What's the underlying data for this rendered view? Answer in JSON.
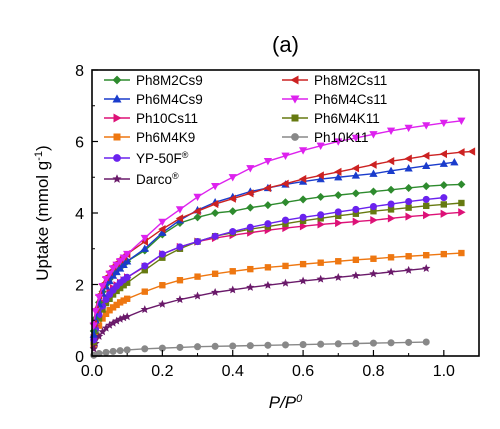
{
  "chart_data": {
    "type": "line",
    "title": "(a)",
    "xlabel": "P/P",
    "xlabel_sup": "0",
    "ylabel_main": "Uptake (mmol g",
    "ylabel_sup": "-1",
    "ylabel_end": ")",
    "xlim": [
      0,
      1.1
    ],
    "ylim": [
      0,
      8
    ],
    "xticks": [
      0.0,
      0.2,
      0.4,
      0.6,
      0.8,
      1.0
    ],
    "xtick_labels": [
      "0.0",
      "0.2",
      "0.4",
      "0.6",
      "0.8",
      "1.0"
    ],
    "yticks": [
      0,
      2,
      4,
      6,
      8
    ],
    "ytick_labels": [
      "0",
      "2",
      "4",
      "6",
      "8"
    ],
    "grid": false,
    "legend_position": "top-left",
    "series": [
      {
        "name": "Ph8M2Cs9",
        "color": "#2e8b2e",
        "marker": "diamond",
        "x": [
          0.005,
          0.01,
          0.02,
          0.03,
          0.04,
          0.05,
          0.06,
          0.07,
          0.08,
          0.09,
          0.1,
          0.15,
          0.2,
          0.25,
          0.3,
          0.35,
          0.4,
          0.45,
          0.5,
          0.55,
          0.6,
          0.65,
          0.7,
          0.75,
          0.8,
          0.85,
          0.9,
          0.95,
          1.0,
          1.05
        ],
        "y": [
          0.7,
          1.05,
          1.5,
          1.8,
          2.0,
          2.15,
          2.28,
          2.4,
          2.48,
          2.56,
          2.65,
          2.95,
          3.4,
          3.72,
          3.88,
          4.0,
          4.05,
          4.15,
          4.22,
          4.3,
          4.38,
          4.45,
          4.5,
          4.55,
          4.6,
          4.65,
          4.7,
          4.75,
          4.78,
          4.8
        ]
      },
      {
        "name": "Ph8M2Cs11",
        "color": "#cc2222",
        "marker": "triangle-left",
        "x": [
          0.005,
          0.01,
          0.02,
          0.03,
          0.04,
          0.05,
          0.06,
          0.07,
          0.08,
          0.09,
          0.1,
          0.15,
          0.2,
          0.25,
          0.3,
          0.35,
          0.4,
          0.45,
          0.5,
          0.55,
          0.6,
          0.65,
          0.7,
          0.75,
          0.8,
          0.85,
          0.9,
          0.95,
          1.0,
          1.05,
          1.08
        ],
        "y": [
          0.9,
          1.3,
          1.7,
          2.0,
          2.2,
          2.35,
          2.5,
          2.6,
          2.7,
          2.78,
          2.85,
          3.2,
          3.55,
          3.85,
          4.05,
          4.25,
          4.4,
          4.55,
          4.7,
          4.82,
          4.95,
          5.05,
          5.15,
          5.25,
          5.35,
          5.45,
          5.52,
          5.6,
          5.65,
          5.7,
          5.72
        ]
      },
      {
        "name": "Ph6M4Cs9",
        "color": "#1a3ccc",
        "marker": "triangle-up",
        "x": [
          0.005,
          0.01,
          0.02,
          0.03,
          0.04,
          0.05,
          0.06,
          0.07,
          0.08,
          0.09,
          0.1,
          0.15,
          0.2,
          0.25,
          0.3,
          0.35,
          0.4,
          0.45,
          0.5,
          0.55,
          0.6,
          0.65,
          0.7,
          0.75,
          0.8,
          0.85,
          0.9,
          0.95,
          1.0,
          1.03
        ],
        "y": [
          0.6,
          1.0,
          1.45,
          1.75,
          1.95,
          2.1,
          2.25,
          2.35,
          2.45,
          2.55,
          2.65,
          3.0,
          3.45,
          3.8,
          4.08,
          4.3,
          4.45,
          4.6,
          4.7,
          4.8,
          4.88,
          4.95,
          5.0,
          5.05,
          5.1,
          5.18,
          5.25,
          5.32,
          5.38,
          5.42
        ]
      },
      {
        "name": "Ph6M4Cs11",
        "color": "#dd22ee",
        "marker": "triangle-down",
        "x": [
          0.005,
          0.01,
          0.02,
          0.03,
          0.04,
          0.05,
          0.06,
          0.07,
          0.08,
          0.09,
          0.1,
          0.15,
          0.2,
          0.25,
          0.3,
          0.35,
          0.4,
          0.45,
          0.5,
          0.55,
          0.6,
          0.65,
          0.7,
          0.75,
          0.8,
          0.85,
          0.9,
          0.95,
          1.0,
          1.05
        ],
        "y": [
          0.85,
          1.25,
          1.65,
          1.95,
          2.15,
          2.3,
          2.45,
          2.55,
          2.65,
          2.75,
          2.85,
          3.3,
          3.75,
          4.1,
          4.45,
          4.75,
          5.0,
          5.25,
          5.45,
          5.6,
          5.75,
          5.88,
          6.0,
          6.1,
          6.2,
          6.3,
          6.38,
          6.45,
          6.52,
          6.58
        ]
      },
      {
        "name": "Ph10Cs11",
        "color": "#dd1177",
        "marker": "triangle-right",
        "x": [
          0.005,
          0.01,
          0.02,
          0.03,
          0.04,
          0.05,
          0.06,
          0.07,
          0.08,
          0.09,
          0.1,
          0.15,
          0.2,
          0.25,
          0.3,
          0.35,
          0.4,
          0.45,
          0.5,
          0.55,
          0.6,
          0.65,
          0.7,
          0.75,
          0.8,
          0.85,
          0.9,
          0.95,
          1.0,
          1.05
        ],
        "y": [
          0.5,
          0.85,
          1.25,
          1.5,
          1.65,
          1.8,
          1.9,
          1.98,
          2.05,
          2.12,
          2.2,
          2.5,
          2.85,
          3.05,
          3.2,
          3.3,
          3.38,
          3.45,
          3.52,
          3.58,
          3.63,
          3.68,
          3.72,
          3.76,
          3.8,
          3.85,
          3.9,
          3.94,
          3.98,
          4.02
        ]
      },
      {
        "name": "Ph6M4K11",
        "color": "#667a10",
        "marker": "square",
        "x": [
          0.005,
          0.01,
          0.02,
          0.03,
          0.04,
          0.05,
          0.06,
          0.07,
          0.08,
          0.09,
          0.1,
          0.15,
          0.2,
          0.25,
          0.3,
          0.35,
          0.4,
          0.45,
          0.5,
          0.55,
          0.6,
          0.65,
          0.7,
          0.75,
          0.8,
          0.85,
          0.9,
          0.95,
          1.0,
          1.05
        ],
        "y": [
          0.4,
          0.7,
          1.05,
          1.3,
          1.48,
          1.6,
          1.72,
          1.82,
          1.9,
          1.98,
          2.05,
          2.4,
          2.75,
          3.0,
          3.2,
          3.35,
          3.45,
          3.55,
          3.62,
          3.7,
          3.78,
          3.85,
          3.92,
          3.98,
          4.05,
          4.1,
          4.15,
          4.2,
          4.24,
          4.28
        ]
      },
      {
        "name": "Ph6M4K9",
        "color": "#ee7711",
        "marker": "square",
        "x": [
          0.005,
          0.01,
          0.02,
          0.03,
          0.04,
          0.05,
          0.06,
          0.07,
          0.08,
          0.09,
          0.1,
          0.15,
          0.2,
          0.25,
          0.3,
          0.35,
          0.4,
          0.45,
          0.5,
          0.55,
          0.6,
          0.65,
          0.7,
          0.75,
          0.8,
          0.85,
          0.9,
          0.95,
          1.0,
          1.05
        ],
        "y": [
          0.3,
          0.55,
          0.85,
          1.05,
          1.18,
          1.28,
          1.36,
          1.43,
          1.5,
          1.55,
          1.6,
          1.8,
          1.98,
          2.12,
          2.22,
          2.3,
          2.37,
          2.43,
          2.48,
          2.52,
          2.57,
          2.61,
          2.65,
          2.69,
          2.72,
          2.76,
          2.79,
          2.82,
          2.85,
          2.88
        ]
      },
      {
        "name": "Ph10K11",
        "color": "#888888",
        "marker": "circle",
        "x": [
          0.005,
          0.02,
          0.04,
          0.06,
          0.08,
          0.1,
          0.15,
          0.2,
          0.25,
          0.3,
          0.35,
          0.4,
          0.45,
          0.5,
          0.55,
          0.6,
          0.65,
          0.7,
          0.75,
          0.8,
          0.85,
          0.9,
          0.95
        ],
        "y": [
          0.02,
          0.07,
          0.1,
          0.13,
          0.15,
          0.17,
          0.2,
          0.22,
          0.24,
          0.26,
          0.27,
          0.28,
          0.29,
          0.3,
          0.31,
          0.32,
          0.33,
          0.34,
          0.35,
          0.36,
          0.37,
          0.38,
          0.39
        ]
      },
      {
        "name": "YP-50F",
        "name_sup": "®",
        "color": "#6a22ee",
        "marker": "circle",
        "x": [
          0.005,
          0.01,
          0.02,
          0.03,
          0.04,
          0.05,
          0.06,
          0.07,
          0.08,
          0.09,
          0.1,
          0.15,
          0.2,
          0.25,
          0.3,
          0.35,
          0.4,
          0.45,
          0.5,
          0.55,
          0.6,
          0.65,
          0.7,
          0.75,
          0.8,
          0.85,
          0.9,
          0.95,
          1.0
        ],
        "y": [
          0.45,
          0.75,
          1.15,
          1.4,
          1.58,
          1.72,
          1.84,
          1.95,
          2.05,
          2.13,
          2.2,
          2.52,
          2.85,
          3.05,
          3.2,
          3.35,
          3.48,
          3.6,
          3.7,
          3.8,
          3.88,
          3.95,
          4.03,
          4.1,
          4.18,
          4.25,
          4.32,
          4.38,
          4.43
        ]
      },
      {
        "name": "Darco",
        "name_sup": "®",
        "color": "#6a1a6a",
        "marker": "star",
        "x": [
          0.005,
          0.01,
          0.02,
          0.03,
          0.04,
          0.05,
          0.06,
          0.07,
          0.08,
          0.09,
          0.1,
          0.15,
          0.2,
          0.25,
          0.3,
          0.35,
          0.4,
          0.45,
          0.5,
          0.55,
          0.6,
          0.65,
          0.7,
          0.75,
          0.8,
          0.85,
          0.9,
          0.95
        ],
        "y": [
          0.2,
          0.35,
          0.55,
          0.68,
          0.78,
          0.86,
          0.92,
          0.98,
          1.03,
          1.07,
          1.1,
          1.3,
          1.45,
          1.58,
          1.68,
          1.78,
          1.85,
          1.92,
          1.98,
          2.04,
          2.1,
          2.15,
          2.2,
          2.25,
          2.3,
          2.35,
          2.4,
          2.45
        ]
      }
    ]
  }
}
